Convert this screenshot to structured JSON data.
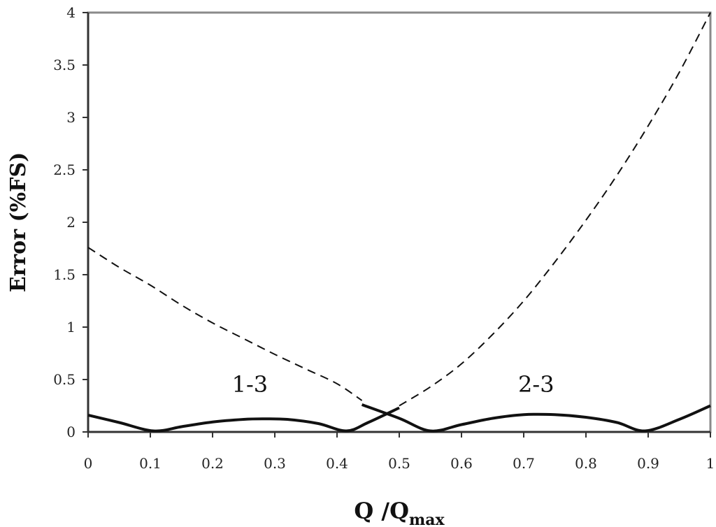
{
  "chart_data": {
    "type": "line",
    "xlabel": "Q /Q",
    "xlabel_sub": "max",
    "ylabel": "Error (%FS)",
    "xlim": [
      0,
      1
    ],
    "ylim": [
      0,
      4
    ],
    "x_ticks": [
      "0",
      "0.1",
      "0.2",
      "0.3",
      "0.4",
      "0.5",
      "0.6",
      "0.7",
      "0.8",
      "0.9",
      "1"
    ],
    "y_ticks": [
      "0",
      "0.5",
      "1",
      "1.5",
      "2",
      "2.5",
      "3",
      "3.5",
      "4"
    ],
    "grid": false,
    "series": [
      {
        "style": "solid",
        "points": [
          [
            0,
            0.16
          ],
          [
            0.05,
            0.09
          ],
          [
            0.105,
            0.01
          ],
          [
            0.15,
            0.05
          ],
          [
            0.2,
            0.095
          ],
          [
            0.25,
            0.12
          ],
          [
            0.28,
            0.125
          ],
          [
            0.32,
            0.12
          ],
          [
            0.37,
            0.08
          ],
          [
            0.415,
            0.01
          ],
          [
            0.45,
            0.09
          ],
          [
            0.5,
            0.23
          ]
        ]
      },
      {
        "style": "solid",
        "points": [
          [
            0.44,
            0.26
          ],
          [
            0.5,
            0.13
          ],
          [
            0.55,
            0.01
          ],
          [
            0.6,
            0.07
          ],
          [
            0.65,
            0.13
          ],
          [
            0.7,
            0.165
          ],
          [
            0.75,
            0.165
          ],
          [
            0.8,
            0.14
          ],
          [
            0.85,
            0.09
          ],
          [
            0.895,
            0.01
          ],
          [
            0.95,
            0.12
          ],
          [
            1.0,
            0.25
          ]
        ]
      },
      {
        "style": "dashed",
        "points": [
          [
            0,
            1.76
          ],
          [
            0.05,
            1.57
          ],
          [
            0.1,
            1.4
          ],
          [
            0.15,
            1.21
          ],
          [
            0.2,
            1.04
          ],
          [
            0.25,
            0.89
          ],
          [
            0.3,
            0.74
          ],
          [
            0.35,
            0.6
          ],
          [
            0.4,
            0.46
          ],
          [
            0.44,
            0.3
          ]
        ]
      },
      {
        "style": "dashed",
        "points": [
          [
            0.5,
            0.25
          ],
          [
            0.55,
            0.43
          ],
          [
            0.6,
            0.65
          ],
          [
            0.65,
            0.93
          ],
          [
            0.7,
            1.25
          ],
          [
            0.75,
            1.62
          ],
          [
            0.8,
            2.02
          ],
          [
            0.85,
            2.45
          ],
          [
            0.9,
            2.92
          ],
          [
            0.95,
            3.43
          ],
          [
            1.0,
            4.0
          ]
        ]
      }
    ],
    "annotations": [
      {
        "text": "1-3",
        "x": 0.26,
        "y": 0.38
      },
      {
        "text": "2-3",
        "x": 0.72,
        "y": 0.38
      }
    ]
  }
}
